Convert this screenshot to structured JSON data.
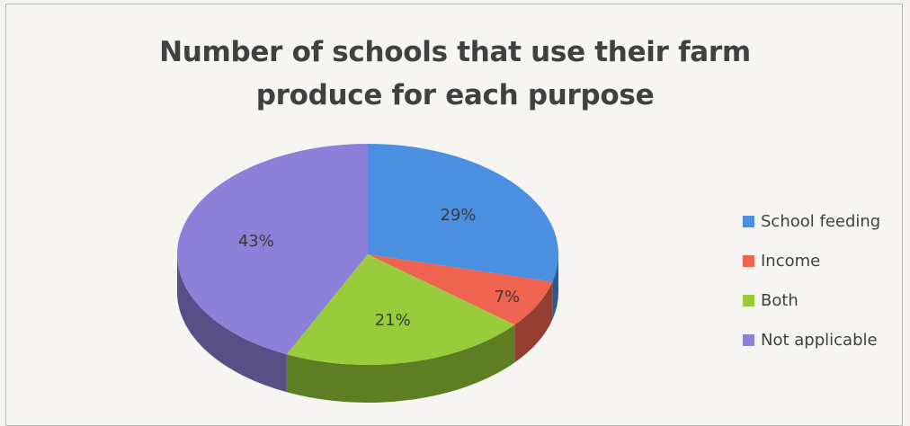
{
  "chart_data": {
    "type": "pie",
    "title_lines": [
      "Number of schools that use their farm",
      "produce for each purpose"
    ],
    "slices": [
      {
        "name": "School feeding",
        "value": 29,
        "label": "29%",
        "color": "#4a8fe0"
      },
      {
        "name": "Income",
        "value": 7,
        "label": "7%",
        "color": "#ee6450"
      },
      {
        "name": "Both",
        "value": 21,
        "label": "21%",
        "color": "#98cc3a"
      },
      {
        "name": "Not applicable",
        "value": 43,
        "label": "43%",
        "color": "#8c80d8"
      }
    ],
    "legend_position": "right",
    "three_d": true
  }
}
